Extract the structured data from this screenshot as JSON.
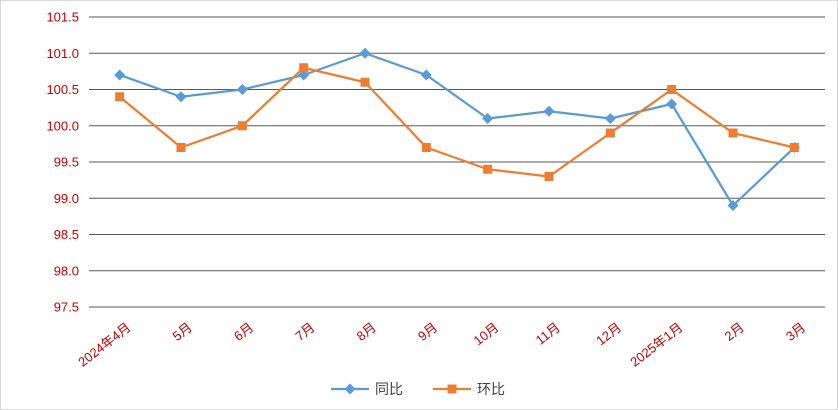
{
  "chart_data": {
    "type": "line",
    "title": "",
    "xlabel": "",
    "ylabel": "",
    "categories": [
      "2024年4月",
      "5月",
      "6月",
      "7月",
      "8月",
      "9月",
      "10月",
      "11月",
      "12月",
      "2025年1月",
      "2月",
      "3月"
    ],
    "series": [
      {
        "name": "同比",
        "marker": "diamond",
        "color": "#5B9BD5",
        "values": [
          100.7,
          100.4,
          100.5,
          100.7,
          101.0,
          100.7,
          100.1,
          100.2,
          100.1,
          100.3,
          98.9,
          99.7
        ]
      },
      {
        "name": "环比",
        "marker": "square",
        "color": "#ED7D31",
        "values": [
          100.4,
          99.7,
          100.0,
          100.8,
          100.6,
          99.7,
          99.4,
          99.3,
          99.9,
          100.5,
          99.9,
          99.7
        ]
      }
    ],
    "ylim": [
      97.5,
      101.5
    ],
    "ytick_step": 0.5,
    "ytick_decimals": 1,
    "grid": true,
    "legend_position": "bottom",
    "axis_label_color": "#C00000",
    "legend_label_color": "#404040",
    "grid_color": "#595959",
    "background_color": "#FFFFFF"
  }
}
